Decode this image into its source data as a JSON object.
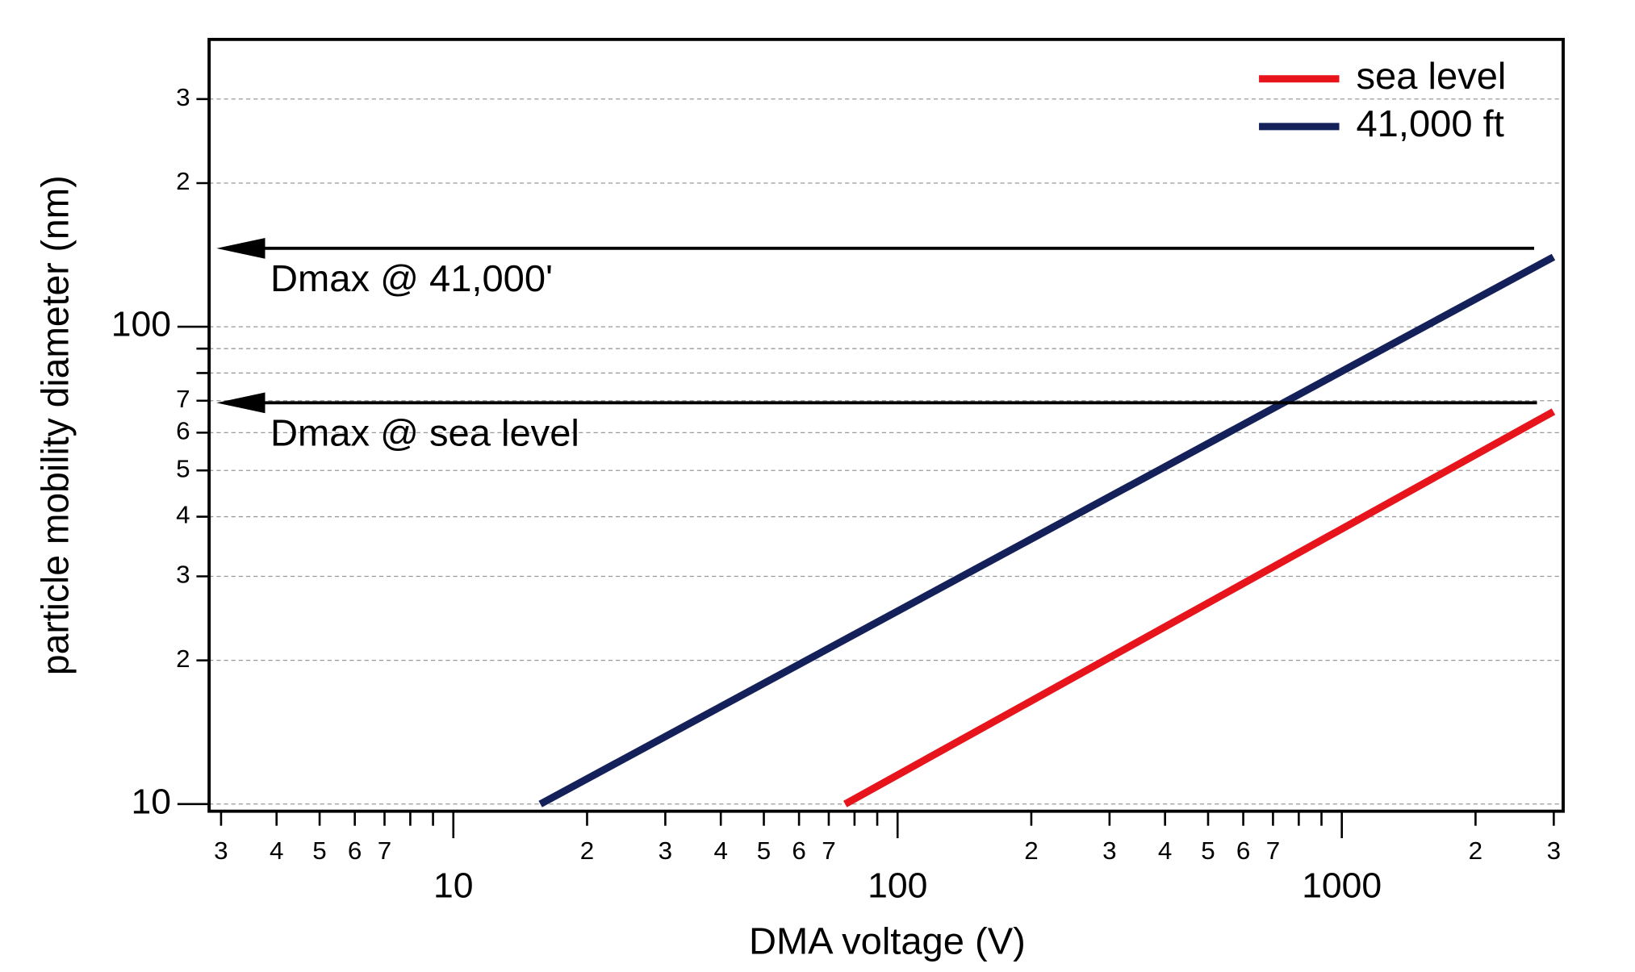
{
  "chart_data": {
    "type": "line",
    "xlabel": "DMA voltage (V)",
    "ylabel": "particle mobility diameter (nm)",
    "log_x": true,
    "log_y": true,
    "grid": true,
    "legend": "upper right",
    "xlim": [
      2.82,
      3150
    ],
    "ylim": [
      9.66,
      400
    ],
    "xticks": [
      {
        "value": 3,
        "label": "3"
      },
      {
        "value": 4,
        "label": "4"
      },
      {
        "value": 5,
        "label": "5"
      },
      {
        "value": 6,
        "label": "6"
      },
      {
        "value": 7,
        "label": "7"
      },
      10,
      {
        "value": 20,
        "label": "2"
      },
      {
        "value": 30,
        "label": "3"
      },
      {
        "value": 40,
        "label": "4"
      },
      {
        "value": 50,
        "label": "5"
      },
      {
        "value": 60,
        "label": "6"
      },
      {
        "value": 70,
        "label": "7"
      },
      100,
      {
        "value": 200,
        "label": "2"
      },
      {
        "value": 300,
        "label": "3"
      },
      {
        "value": 400,
        "label": "4"
      },
      {
        "value": 500,
        "label": "5"
      },
      {
        "value": 600,
        "label": "6"
      },
      {
        "value": 700,
        "label": "7"
      },
      1000,
      {
        "value": 2000,
        "label": "2"
      },
      {
        "value": 3000,
        "label": "3"
      }
    ],
    "x_minor_ticks": [
      8,
      9,
      80,
      90,
      800,
      900
    ],
    "yticks": [
      10,
      {
        "value": 20,
        "label": "2"
      },
      {
        "value": 30,
        "label": "3"
      },
      {
        "value": 40,
        "label": "4"
      },
      {
        "value": 50,
        "label": "5"
      },
      {
        "value": 60,
        "label": "6"
      },
      {
        "value": 70,
        "label": "7"
      },
      100,
      {
        "value": 200,
        "label": "2"
      },
      {
        "value": 300,
        "label": "3"
      }
    ],
    "y_minor_ticks": [
      80,
      90
    ],
    "series": [
      {
        "name": "sea level",
        "color": "#e8141c",
        "x": [
          76.2,
          2995
        ],
        "values": [
          10,
          66.4
        ]
      },
      {
        "name": "41,000 ft",
        "color": "#14205a",
        "x": [
          15.7,
          2995
        ],
        "values": [
          10,
          140
        ]
      }
    ],
    "annotations": [
      {
        "text": "Dmax @ 41,000'",
        "y": 146,
        "x": [
          2710,
          2.93
        ]
      },
      {
        "text": "Dmax @ sea level",
        "y": 69.3,
        "x": [
          2750,
          2.93
        ]
      }
    ]
  }
}
